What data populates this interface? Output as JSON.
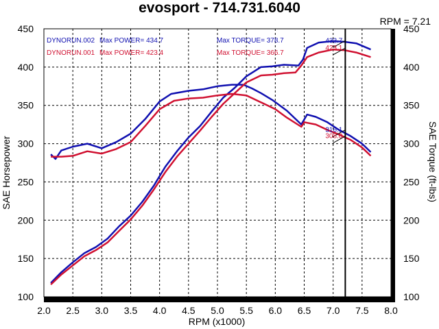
{
  "chart_data": {
    "type": "line",
    "title": "evosport - 714.731.6040",
    "xlabel": "RPM (x1000)",
    "ylabel": "SAE Horsepower",
    "y2label": "SAE Torque (ft-lbs)",
    "xlim": [
      2.0,
      8.0
    ],
    "ylim": [
      100,
      450
    ],
    "x_ticks": [
      "2.0",
      "2.5",
      "3.0",
      "3.5",
      "4.0",
      "4.5",
      "5.0",
      "5.5",
      "6.0",
      "6.5",
      "7.0",
      "7.5",
      "8.0"
    ],
    "y_ticks": [
      "100",
      "150",
      "200",
      "250",
      "300",
      "350",
      "400",
      "450"
    ],
    "y2_ticks": [
      "100",
      "150",
      "200",
      "250",
      "300",
      "350",
      "400",
      "450"
    ],
    "grid": true,
    "cursor": {
      "label": "RPM = 7.21",
      "rpm": 7.21
    },
    "legend": [
      {
        "name": "DYNORUN.002",
        "power_label": "Max POWER= 434.7",
        "torque_label": "Max TORQUE= 378.7",
        "color": "#1010b0"
      },
      {
        "name": "DYNORUN.001",
        "power_label": "Max POWER= 423.4",
        "torque_label": "Max TORQUE= 366.7",
        "color": "#d01030"
      }
    ],
    "series": [
      {
        "name": "DYNORUN.002 Horsepower",
        "color": "#1010b0",
        "x": [
          2.12,
          2.3,
          2.5,
          2.7,
          2.9,
          3.1,
          3.3,
          3.5,
          3.7,
          3.9,
          4.1,
          4.3,
          4.5,
          4.7,
          4.9,
          5.1,
          5.3,
          5.5,
          5.75,
          5.95,
          6.15,
          6.4,
          6.48,
          6.55,
          6.75,
          7.0,
          7.2,
          7.4,
          7.65
        ],
        "values": [
          118,
          132,
          145,
          157,
          165,
          176,
          192,
          206,
          224,
          245,
          270,
          290,
          308,
          323,
          342,
          360,
          373,
          388,
          400,
          401,
          403,
          402,
          410,
          425,
          432,
          434,
          433,
          431,
          423
        ]
      },
      {
        "name": "DYNORUN.002 Torque",
        "color": "#1010b0",
        "x": [
          2.12,
          2.2,
          2.3,
          2.5,
          2.75,
          3.0,
          3.25,
          3.5,
          3.75,
          4.0,
          4.2,
          4.5,
          4.75,
          5.0,
          5.25,
          5.45,
          5.6,
          5.75,
          5.95,
          6.2,
          6.45,
          6.55,
          6.7,
          6.9,
          7.1,
          7.3,
          7.5,
          7.65
        ],
        "values": [
          286,
          280,
          291,
          296,
          300,
          294,
          302,
          313,
          332,
          355,
          365,
          369,
          371,
          375,
          377,
          377,
          372,
          366,
          357,
          343,
          325,
          338,
          335,
          328,
          318,
          310,
          300,
          289
        ]
      },
      {
        "name": "DYNORUN.001 Horsepower",
        "color": "#d01030",
        "x": [
          2.12,
          2.3,
          2.5,
          2.7,
          2.9,
          3.1,
          3.3,
          3.5,
          3.7,
          3.9,
          4.1,
          4.3,
          4.5,
          4.7,
          4.9,
          5.1,
          5.3,
          5.5,
          5.75,
          5.95,
          6.15,
          6.35,
          6.45,
          6.55,
          6.75,
          7.0,
          7.2,
          7.4,
          7.65
        ],
        "values": [
          116,
          129,
          141,
          153,
          161,
          171,
          186,
          201,
          219,
          240,
          263,
          283,
          300,
          317,
          335,
          352,
          366,
          380,
          389,
          390,
          392,
          393,
          402,
          413,
          419,
          423,
          422,
          419,
          413
        ]
      },
      {
        "name": "DYNORUN.001 Torque",
        "color": "#d01030",
        "x": [
          2.12,
          2.3,
          2.5,
          2.75,
          3.0,
          3.25,
          3.5,
          3.75,
          4.0,
          4.25,
          4.5,
          4.75,
          5.0,
          5.25,
          5.5,
          5.75,
          6.0,
          6.2,
          6.45,
          6.5,
          6.7,
          6.9,
          7.1,
          7.3,
          7.5,
          7.65
        ],
        "values": [
          283,
          283,
          284,
          290,
          287,
          293,
          302,
          323,
          345,
          356,
          359,
          360,
          363,
          365,
          363,
          354,
          345,
          334,
          322,
          328,
          325,
          318,
          312,
          305,
          295,
          284
        ]
      }
    ],
    "annotations": [
      {
        "text": "432.7",
        "rpm": 7.21,
        "y": 432.7,
        "color": "#1010b0"
      },
      {
        "text": "423.1",
        "rpm": 7.21,
        "y": 423.1,
        "color": "#d01030"
      },
      {
        "text": "316.1",
        "rpm": 7.21,
        "y": 316.1,
        "color": "#1010b0"
      },
      {
        "text": "308.0",
        "rpm": 7.21,
        "y": 308.0,
        "color": "#d01030"
      }
    ]
  }
}
